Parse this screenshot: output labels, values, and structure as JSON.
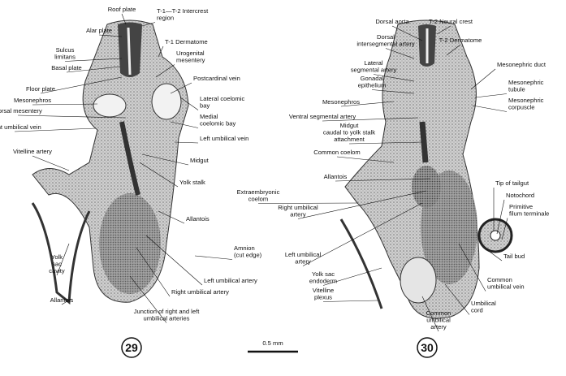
{
  "figures": [
    {
      "number": "29",
      "labels": [
        {
          "lines": [
            "Roof plate"
          ]
        },
        {
          "lines": [
            "Alar plate"
          ]
        },
        {
          "lines": [
            "T-1—T-2 Intercrest",
            "region"
          ]
        },
        {
          "lines": [
            "T-1 Dermatome"
          ]
        },
        {
          "lines": [
            "Sulcus",
            "limitans"
          ]
        },
        {
          "lines": [
            "Basal plate"
          ]
        },
        {
          "lines": [
            "Urogenital",
            "mesentery"
          ]
        },
        {
          "lines": [
            "Postcardinal vein"
          ]
        },
        {
          "lines": [
            "Floor plate"
          ]
        },
        {
          "lines": [
            "Mesonephros"
          ]
        },
        {
          "lines": [
            "Dorsal mesentery"
          ]
        },
        {
          "lines": [
            "Lateral coelomic",
            "bay"
          ]
        },
        {
          "lines": [
            "Medial",
            "coelomic bay"
          ]
        },
        {
          "lines": [
            "Right umbilical vein"
          ]
        },
        {
          "lines": [
            "Left umbilical vein"
          ]
        },
        {
          "lines": [
            "Vitelline artery"
          ]
        },
        {
          "lines": [
            "Midgut"
          ]
        },
        {
          "lines": [
            "Yolk stalk"
          ]
        },
        {
          "lines": [
            "Allantois"
          ]
        },
        {
          "lines": [
            "Amnion",
            "(cut edge)"
          ]
        },
        {
          "lines": [
            "Yolk",
            "sac",
            "cavity"
          ]
        },
        {
          "lines": [
            "Left umbilical artery"
          ]
        },
        {
          "lines": [
            "Right umbilical artery"
          ]
        },
        {
          "lines": [
            "Allantois"
          ]
        },
        {
          "lines": [
            "Junction of right and left",
            "umbilical arteries"
          ]
        }
      ]
    },
    {
      "number": "30",
      "labels": [
        {
          "lines": [
            "Dorsal aorta"
          ]
        },
        {
          "lines": [
            "T-2 Neural crest"
          ]
        },
        {
          "lines": [
            "Dorsal",
            "intersegmental artery"
          ]
        },
        {
          "lines": [
            "T-2 Dermatome"
          ]
        },
        {
          "lines": [
            "Lateral",
            "segmental artery"
          ]
        },
        {
          "lines": [
            "Mesonephric duct"
          ]
        },
        {
          "lines": [
            "Gonadal",
            "epithelium"
          ]
        },
        {
          "lines": [
            "Mesonephric",
            "tubule"
          ]
        },
        {
          "lines": [
            "Mesonephros"
          ]
        },
        {
          "lines": [
            "Mesonephric",
            "corpuscle"
          ]
        },
        {
          "lines": [
            "Ventral segmental artery"
          ]
        },
        {
          "lines": [
            "Midgut",
            "caudal to yolk stalk",
            "attachment"
          ]
        },
        {
          "lines": [
            "Common coelom"
          ]
        },
        {
          "lines": [
            "Allantois"
          ]
        },
        {
          "lines": [
            "Extraembryonic",
            "coelom"
          ]
        },
        {
          "lines": [
            "Tip of tailgut"
          ]
        },
        {
          "lines": [
            "Notochord"
          ]
        },
        {
          "lines": [
            "Primitive",
            "filum terminale"
          ]
        },
        {
          "lines": [
            "Right umbilical",
            "artery"
          ]
        },
        {
          "lines": [
            "Left umbilical",
            "artery"
          ]
        },
        {
          "lines": [
            "Tail bud"
          ]
        },
        {
          "lines": [
            "Yolk sac",
            "endoderm"
          ]
        },
        {
          "lines": [
            "Common",
            "umbilical vein"
          ]
        },
        {
          "lines": [
            "Vitelline",
            "plexus"
          ]
        },
        {
          "lines": [
            "Umbilical",
            "cord"
          ]
        },
        {
          "lines": [
            "Common",
            "umbilical",
            "artery"
          ]
        }
      ]
    }
  ],
  "scale_bar": "0.5 mm"
}
